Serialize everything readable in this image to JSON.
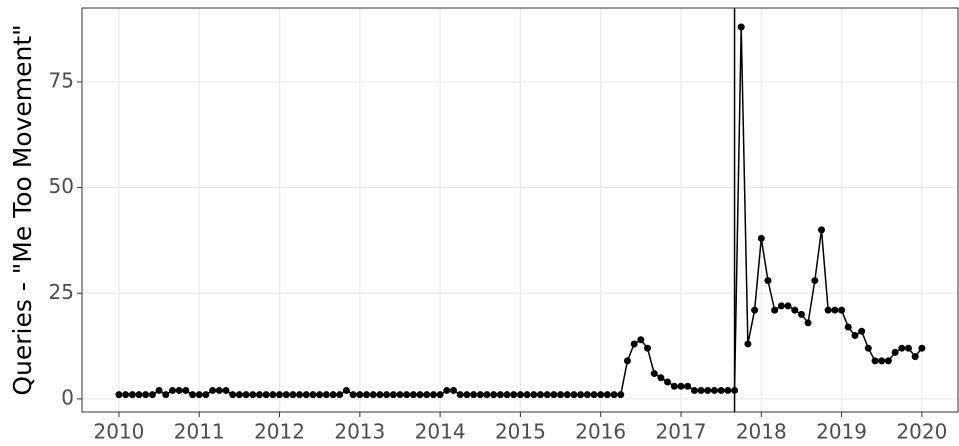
{
  "chart_data": {
    "type": "line",
    "y_label": "Queries - \"Me Too Movement\"",
    "x": [
      2010,
      2010.083,
      2010.167,
      2010.25,
      2010.333,
      2010.417,
      2010.5,
      2010.583,
      2010.667,
      2010.75,
      2010.833,
      2010.917,
      2011,
      2011.083,
      2011.167,
      2011.25,
      2011.333,
      2011.417,
      2011.5,
      2011.583,
      2011.667,
      2011.75,
      2011.833,
      2011.917,
      2012,
      2012.083,
      2012.167,
      2012.25,
      2012.333,
      2012.417,
      2012.5,
      2012.583,
      2012.667,
      2012.75,
      2012.833,
      2012.917,
      2013,
      2013.083,
      2013.167,
      2013.25,
      2013.333,
      2013.417,
      2013.5,
      2013.583,
      2013.667,
      2013.75,
      2013.833,
      2013.917,
      2014,
      2014.083,
      2014.167,
      2014.25,
      2014.333,
      2014.417,
      2014.5,
      2014.583,
      2014.667,
      2014.75,
      2014.833,
      2014.917,
      2015,
      2015.083,
      2015.167,
      2015.25,
      2015.333,
      2015.417,
      2015.5,
      2015.583,
      2015.667,
      2015.75,
      2015.833,
      2015.917,
      2016,
      2016.083,
      2016.167,
      2016.25,
      2016.333,
      2016.417,
      2016.5,
      2016.583,
      2016.667,
      2016.75,
      2016.833,
      2016.917,
      2017,
      2017.083,
      2017.167,
      2017.25,
      2017.333,
      2017.417,
      2017.5,
      2017.583,
      2017.667,
      2017.75,
      2017.833,
      2017.917,
      2018,
      2018.083,
      2018.167,
      2018.25,
      2018.333,
      2018.417,
      2018.5,
      2018.583,
      2018.667,
      2018.75,
      2018.833,
      2018.917,
      2019,
      2019.083,
      2019.167,
      2019.25,
      2019.333,
      2019.417,
      2019.5,
      2019.583,
      2019.667,
      2019.75,
      2019.833,
      2019.917,
      2020
    ],
    "series": [
      {
        "color": "#000000",
        "values": [
          1,
          1,
          1,
          1,
          1,
          1,
          2,
          1,
          2,
          2,
          2,
          1,
          1,
          1,
          2,
          2,
          2,
          1,
          1,
          1,
          1,
          1,
          1,
          1,
          1,
          1,
          1,
          1,
          1,
          1,
          1,
          1,
          1,
          1,
          2,
          1,
          1,
          1,
          1,
          1,
          1,
          1,
          1,
          1,
          1,
          1,
          1,
          1,
          1,
          2,
          2,
          1,
          1,
          1,
          1,
          1,
          1,
          1,
          1,
          1,
          1,
          1,
          1,
          1,
          1,
          1,
          1,
          1,
          1,
          1,
          1,
          1,
          1,
          1,
          1,
          1,
          9,
          13,
          14,
          12,
          6,
          5,
          4,
          3,
          3,
          3,
          2,
          2,
          2,
          2,
          2,
          2,
          2,
          88,
          13,
          21,
          38,
          28,
          21,
          22,
          22,
          21,
          20,
          18,
          28,
          40,
          21,
          21,
          21,
          17,
          15,
          16,
          12,
          9,
          9,
          9,
          11,
          12,
          12,
          10,
          12
        ]
      }
    ],
    "vline": 2017.667,
    "xlim": [
      2009.54,
      2020.45
    ],
    "xticks": [
      2010,
      2011,
      2012,
      2013,
      2014,
      2015,
      2016,
      2017,
      2018,
      2019,
      2020
    ],
    "ylim": [
      -3.1,
      92.5
    ],
    "yticks": [
      0,
      25,
      50,
      75
    ],
    "grid": true
  }
}
